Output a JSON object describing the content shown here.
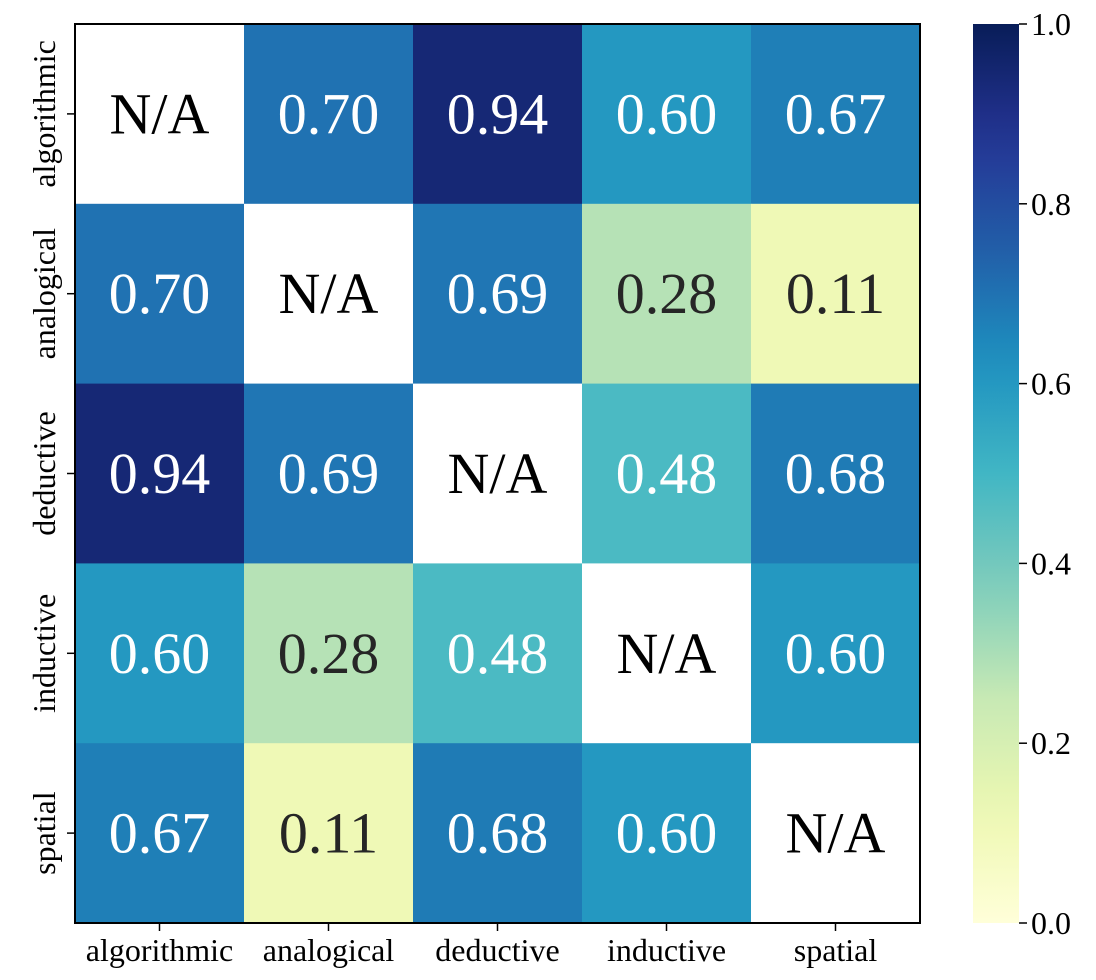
{
  "chart_data": {
    "type": "heatmap",
    "title": "",
    "xlabel": "",
    "ylabel": "",
    "x_categories": [
      "algorithmic",
      "analogical",
      "deductive",
      "inductive",
      "spatial"
    ],
    "y_categories": [
      "algorithmic",
      "analogical",
      "deductive",
      "inductive",
      "spatial"
    ],
    "values": [
      [
        null,
        0.7,
        0.94,
        0.6,
        0.67
      ],
      [
        0.7,
        null,
        0.69,
        0.28,
        0.11
      ],
      [
        0.94,
        0.69,
        null,
        0.48,
        0.68
      ],
      [
        0.6,
        0.28,
        0.48,
        null,
        0.6
      ],
      [
        0.67,
        0.11,
        0.68,
        0.6,
        null
      ]
    ],
    "missing_label": "N/A",
    "value_format": "2 decimals",
    "colormap": "YlGnBu",
    "colorbar": {
      "range": [
        0.0,
        1.0
      ],
      "ticks": [
        0.0,
        0.2,
        0.4,
        0.6,
        0.8,
        1.0
      ],
      "tick_labels": [
        "0.0",
        "0.2",
        "0.4",
        "0.6",
        "0.8",
        "1.0"
      ],
      "placement": "right"
    },
    "colors": {
      "missing_cell": "#ffffff",
      "light_text": "#ffffff",
      "dark_text": "#262626",
      "missing_text": "#000000"
    },
    "grid": false
  }
}
